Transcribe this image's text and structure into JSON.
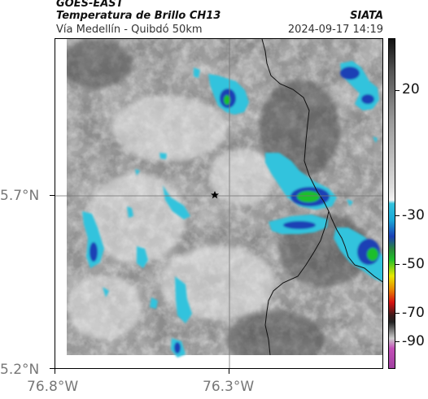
{
  "header": {
    "satellite": "GOES-EAST",
    "product": "Temperatura de Brillo CH13",
    "route": "Vía Medellín - Quibdó 50km",
    "org": "SIATA",
    "datetime": "2024-09-17 14:19"
  },
  "map": {
    "lat_labels": [
      "5.7°N",
      "5.2°N"
    ],
    "lon_labels": [
      "76.8°W",
      "76.3°W"
    ],
    "marker": "star-icon"
  },
  "colorbar": {
    "labels": [
      "20",
      "-30",
      "-50",
      "-70",
      "-90"
    ],
    "colors": {
      "warm_dark": "#111111",
      "warm_gray": "#9a9a9a",
      "cyan": "#33c3dd",
      "blue": "#1a3fb5",
      "green": "#1fbf2a",
      "yellow": "#e8e800",
      "red": "#d81010",
      "magenta": "#c44fb8"
    }
  }
}
